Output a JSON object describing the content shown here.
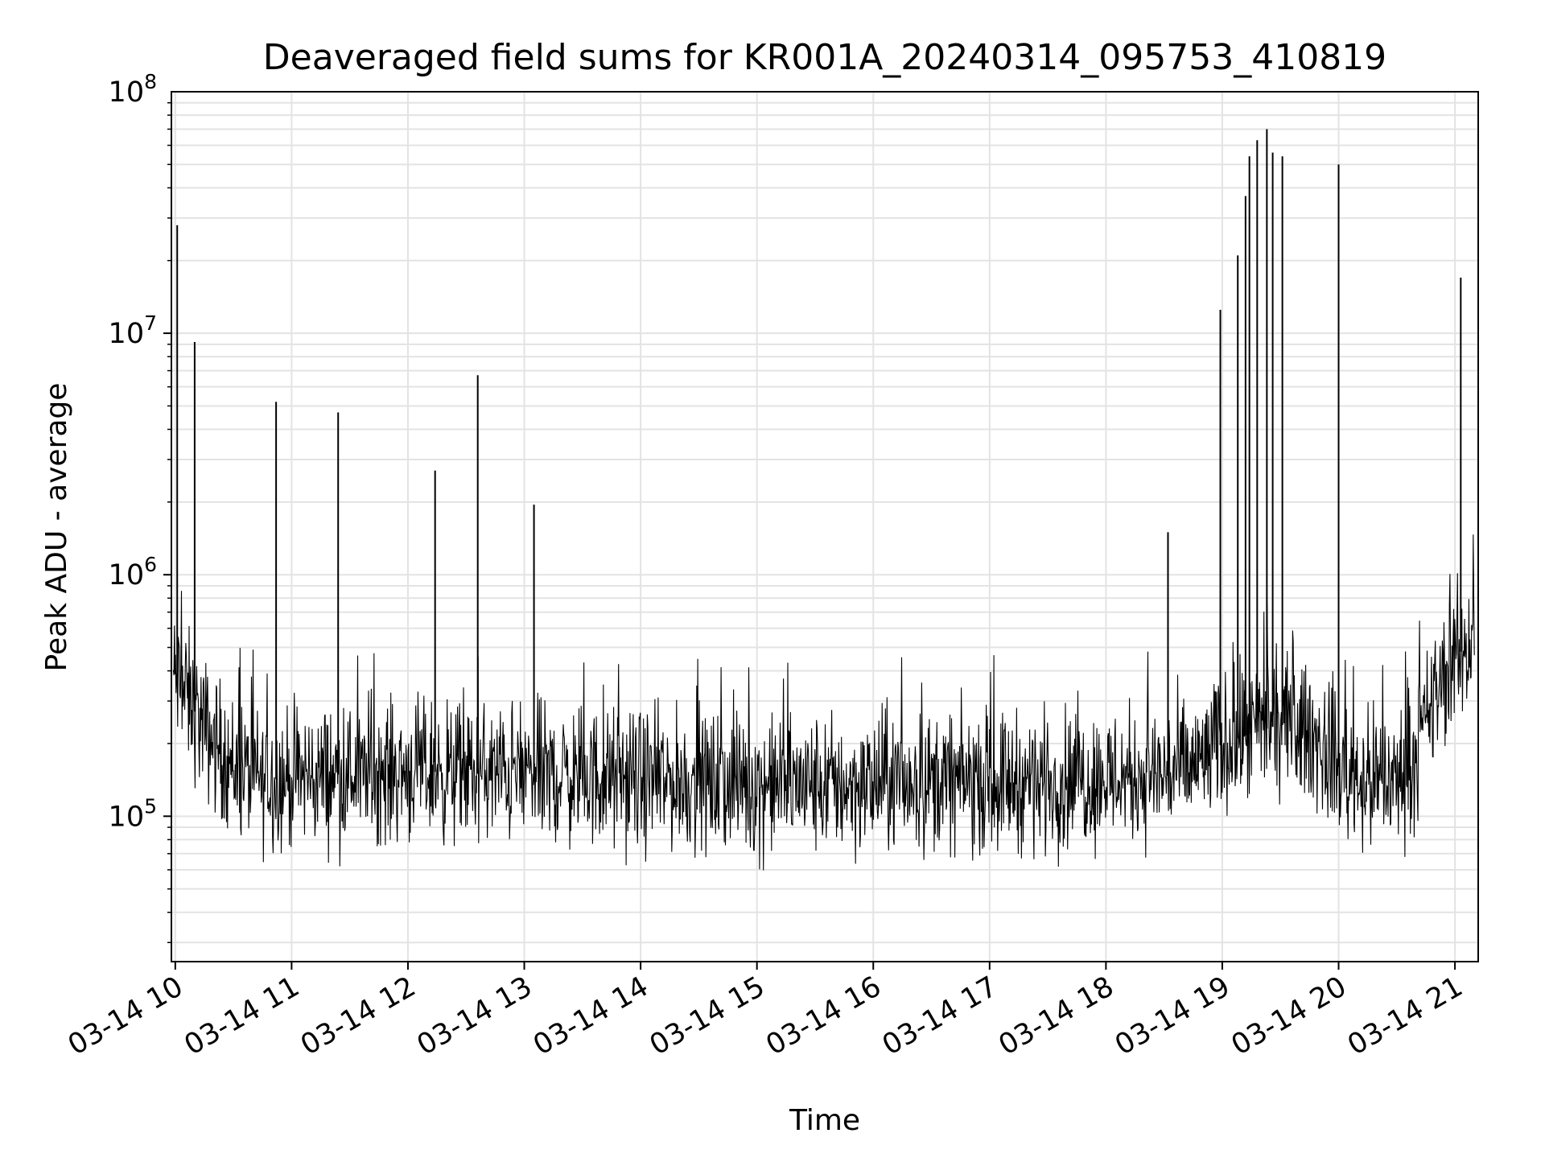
{
  "chart_data": {
    "type": "line",
    "title": "Deaveraged field sums for KR001A_20240314_095753_410819",
    "xlabel": "Time",
    "ylabel": "Peak ADU - average",
    "y_scale": "log",
    "ylim": [
      25000,
      100000000
    ],
    "xlim": [
      "2024-03-14T09:58:00",
      "2024-03-14T21:12:00"
    ],
    "grid": true,
    "x_tick_labels": [
      "03-14 10",
      "03-14 11",
      "03-14 12",
      "03-14 13",
      "03-14 14",
      "03-14 15",
      "03-14 16",
      "03-14 17",
      "03-14 18",
      "03-14 19",
      "03-14 20",
      "03-14 21"
    ],
    "x_tick_times": [
      "2024-03-14T10:00:00",
      "2024-03-14T11:00:00",
      "2024-03-14T12:00:00",
      "2024-03-14T13:00:00",
      "2024-03-14T14:00:00",
      "2024-03-14T15:00:00",
      "2024-03-14T16:00:00",
      "2024-03-14T17:00:00",
      "2024-03-14T18:00:00",
      "2024-03-14T19:00:00",
      "2024-03-14T20:00:00",
      "2024-03-14T21:00:00"
    ],
    "y_ticks": [
      {
        "base": "10",
        "exp": "5",
        "value": 100000
      },
      {
        "base": "10",
        "exp": "6",
        "value": 1000000
      },
      {
        "base": "10",
        "exp": "7",
        "value": 10000000
      },
      {
        "base": "10",
        "exp": "8",
        "value": 100000000
      }
    ],
    "series": [
      {
        "color": "#000000",
        "x": [
          "2024-03-14T09:59:00",
          "2024-03-14T10:05:00",
          "2024-03-14T10:15:00",
          "2024-03-14T10:30:00",
          "2024-03-14T10:45:00",
          "2024-03-14T11:00:00",
          "2024-03-14T11:30:00",
          "2024-03-14T12:00:00",
          "2024-03-14T12:30:00",
          "2024-03-14T13:00:00",
          "2024-03-14T13:30:00",
          "2024-03-14T14:00:00",
          "2024-03-14T14:30:00",
          "2024-03-14T15:00:00",
          "2024-03-14T15:30:00",
          "2024-03-14T16:00:00",
          "2024-03-14T16:30:00",
          "2024-03-14T17:00:00",
          "2024-03-14T17:30:00",
          "2024-03-14T18:00:00",
          "2024-03-14T18:30:00",
          "2024-03-14T18:45:00",
          "2024-03-14T19:00:00",
          "2024-03-14T19:15:00",
          "2024-03-14T19:30:00",
          "2024-03-14T19:45:00",
          "2024-03-14T20:00:00",
          "2024-03-14T20:15:00",
          "2024-03-14T20:30:00",
          "2024-03-14T20:40:00",
          "2024-03-14T20:50:00",
          "2024-03-14T21:00:00",
          "2024-03-14T21:10:00"
        ],
        "values": [
          380000,
          320000,
          230000,
          160000,
          140000,
          145000,
          150000,
          155000,
          150000,
          150000,
          145000,
          140000,
          138000,
          135000,
          135000,
          135000,
          140000,
          140000,
          140000,
          145000,
          150000,
          160000,
          200000,
          220000,
          240000,
          220000,
          160000,
          140000,
          140000,
          180000,
          320000,
          450000,
          560000
        ]
      }
    ],
    "spikes": [
      {
        "time": "2024-03-14T10:01:00",
        "value": 28000000
      },
      {
        "time": "2024-03-14T10:10:00",
        "value": 9200000
      },
      {
        "time": "2024-03-14T10:52:00",
        "value": 5200000
      },
      {
        "time": "2024-03-14T11:24:00",
        "value": 4700000
      },
      {
        "time": "2024-03-14T12:14:00",
        "value": 2700000
      },
      {
        "time": "2024-03-14T12:36:00",
        "value": 6700000
      },
      {
        "time": "2024-03-14T13:05:00",
        "value": 1950000
      },
      {
        "time": "2024-03-14T18:32:00",
        "value": 1500000
      },
      {
        "time": "2024-03-14T18:59:00",
        "value": 12500000
      },
      {
        "time": "2024-03-14T19:08:00",
        "value": 21000000
      },
      {
        "time": "2024-03-14T19:12:00",
        "value": 37000000
      },
      {
        "time": "2024-03-14T19:14:00",
        "value": 54000000
      },
      {
        "time": "2024-03-14T19:18:00",
        "value": 63000000
      },
      {
        "time": "2024-03-14T19:23:00",
        "value": 70000000
      },
      {
        "time": "2024-03-14T19:26:00",
        "value": 56000000
      },
      {
        "time": "2024-03-14T19:31:00",
        "value": 54000000
      },
      {
        "time": "2024-03-14T20:00:00",
        "value": 50000000
      },
      {
        "time": "2024-03-14T21:03:00",
        "value": 17000000
      }
    ]
  }
}
